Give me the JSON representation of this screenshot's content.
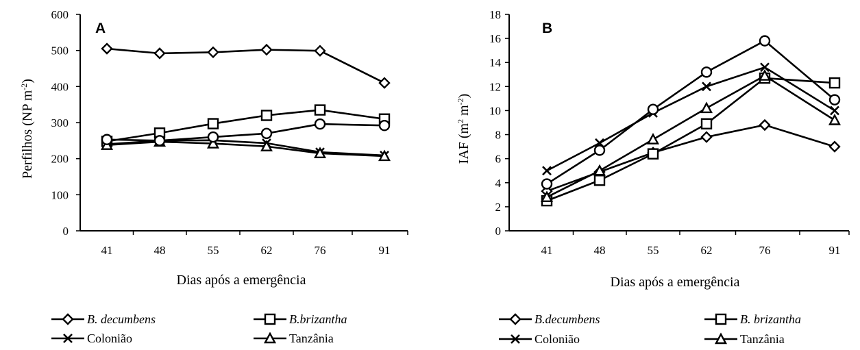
{
  "chart_data": [
    {
      "type": "line",
      "panel_label": "A",
      "categories": [
        "41",
        "48",
        "55",
        "62",
        "76",
        "91"
      ],
      "ylabel": "Perfilhos (NP m-2)",
      "ylabel_parts": {
        "main": "Perfilhos (NP m",
        "sup": "-2",
        "end": ")"
      },
      "xlabel": "Dias após a emergência",
      "ylim": [
        0,
        600
      ],
      "yticks": [
        0,
        100,
        200,
        300,
        400,
        500,
        600
      ],
      "series": [
        {
          "name": "B. decumbens",
          "italic": true,
          "marker": "diamond",
          "values": [
            505,
            492,
            495,
            502,
            499,
            410
          ]
        },
        {
          "name": "B.brizantha",
          "italic": true,
          "marker": "square",
          "values": [
            248,
            271,
            297,
            320,
            335,
            310
          ]
        },
        {
          "name": "Colonião",
          "italic": false,
          "marker": "x",
          "values": [
            240,
            250,
            251,
            243,
            218,
            209
          ]
        },
        {
          "name": "Tanzânia",
          "italic": false,
          "marker": "triangle",
          "values": [
            238,
            247,
            242,
            234,
            215,
            207
          ]
        },
        {
          "name": "",
          "italic": false,
          "marker": "circle",
          "values": [
            253,
            250,
            260,
            270,
            296,
            292
          ]
        }
      ]
    },
    {
      "type": "line",
      "panel_label": "B",
      "categories": [
        "41",
        "48",
        "55",
        "62",
        "76",
        "91"
      ],
      "ylabel": "IAF (m2 m-2)",
      "ylabel_parts": {
        "main": "IAF (m",
        "sup1": "2",
        "mid": " m",
        "sup2": "-2",
        "end": ")"
      },
      "xlabel": "Dias após a emergência",
      "ylim": [
        0,
        18
      ],
      "yticks": [
        0,
        2,
        4,
        6,
        8,
        10,
        12,
        14,
        16,
        18
      ],
      "series": [
        {
          "name": "B.decumbens",
          "italic": true,
          "marker": "diamond",
          "values": [
            3.3,
            4.9,
            6.5,
            7.8,
            8.8,
            7.0
          ]
        },
        {
          "name": "B. brizantha",
          "italic": true,
          "marker": "square",
          "values": [
            2.5,
            4.2,
            6.4,
            8.9,
            12.7,
            12.3
          ]
        },
        {
          "name": "Colonião",
          "italic": false,
          "marker": "x",
          "values": [
            5.0,
            7.3,
            9.8,
            12.0,
            13.6,
            10.0
          ]
        },
        {
          "name": "Tanzânia",
          "italic": false,
          "marker": "triangle",
          "values": [
            2.8,
            5.0,
            7.6,
            10.2,
            12.9,
            9.2
          ]
        },
        {
          "name": "",
          "italic": false,
          "marker": "circle",
          "values": [
            3.9,
            6.7,
            10.1,
            13.2,
            15.8,
            10.9
          ]
        }
      ]
    }
  ]
}
